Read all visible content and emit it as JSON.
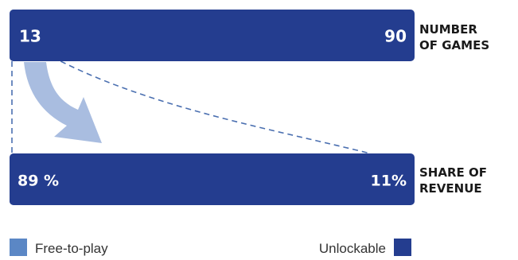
{
  "chart_data": [
    {
      "type": "bar",
      "title": "NUMBER OF GAMES",
      "title_lines": [
        "NUMBER",
        "OF GAMES"
      ],
      "series": [
        {
          "name": "Free-to-play",
          "value": 13,
          "label": "13"
        },
        {
          "name": "Unlockable",
          "value": 90,
          "label": "90"
        }
      ],
      "stacked": true
    },
    {
      "type": "bar",
      "title": "SHARE OF REVENUE",
      "title_lines": [
        "SHARE OF",
        "REVENUE"
      ],
      "unit": "%",
      "series": [
        {
          "name": "Free-to-play",
          "value": 89,
          "label": "89 %"
        },
        {
          "name": "Unlockable",
          "value": 11,
          "label": "11%"
        }
      ],
      "stacked": true
    }
  ],
  "legend": {
    "placement": "bottom",
    "items": [
      {
        "name": "Free-to-play",
        "color": "#5b87c5"
      },
      {
        "name": "Unlockable",
        "color": "#243d8f"
      }
    ]
  },
  "colors": {
    "free": "#5b87c5",
    "unlockable": "#243d8f",
    "arrow": "#a9bde0",
    "connector": "#4a6fb0"
  }
}
